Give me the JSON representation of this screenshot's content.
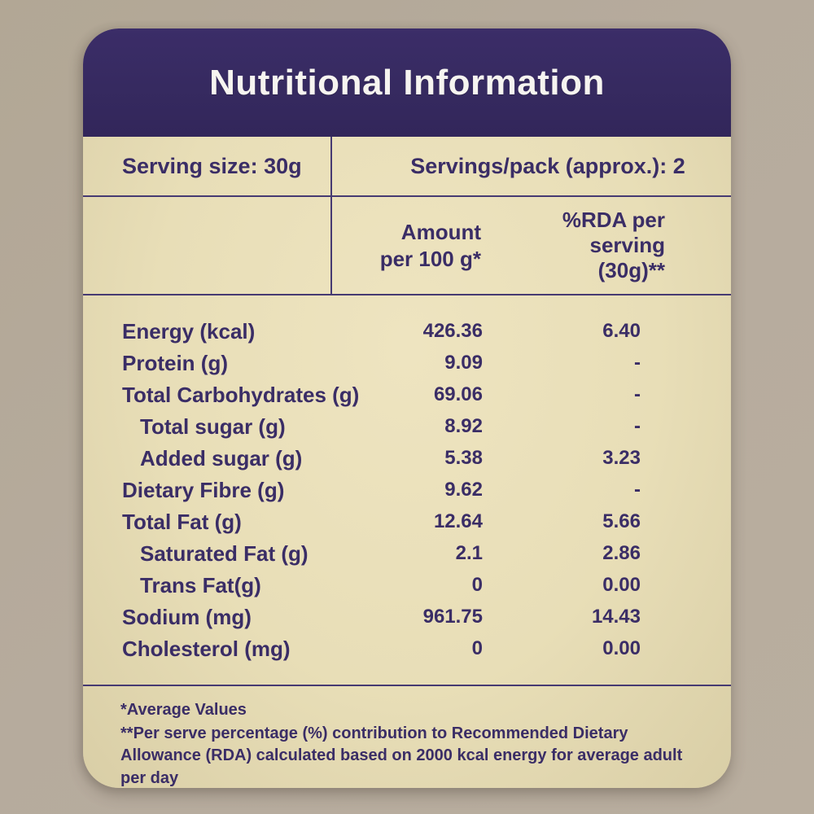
{
  "title": "Nutritional Information",
  "serving": {
    "size": "Serving size: 30g",
    "per_pack": "Servings/pack (approx.): 2"
  },
  "columns": {
    "amount_lines": [
      "Amount",
      "per 100 g*"
    ],
    "rda_lines": [
      "%RDA per",
      "serving",
      "(30g)**"
    ]
  },
  "rows": [
    {
      "label": "Energy (kcal)",
      "indent": false,
      "amount": "426.36",
      "rda": "6.40"
    },
    {
      "label": "Protein (g)",
      "indent": false,
      "amount": "9.09",
      "rda": "-"
    },
    {
      "label": "Total Carbohydrates (g)",
      "indent": false,
      "amount": "69.06",
      "rda": "-"
    },
    {
      "label": "Total sugar (g)",
      "indent": true,
      "amount": "8.92",
      "rda": "-"
    },
    {
      "label": "Added sugar (g)",
      "indent": true,
      "amount": "5.38",
      "rda": "3.23"
    },
    {
      "label": "Dietary Fibre (g)",
      "indent": false,
      "amount": "9.62",
      "rda": "-"
    },
    {
      "label": "Total Fat (g)",
      "indent": false,
      "amount": "12.64",
      "rda": "5.66"
    },
    {
      "label": "Saturated Fat (g)",
      "indent": true,
      "amount": "2.1",
      "rda": "2.86"
    },
    {
      "label": "Trans Fat(g)",
      "indent": true,
      "amount": "0",
      "rda": "0.00"
    },
    {
      "label": "Sodium (mg)",
      "indent": false,
      "amount": "961.75",
      "rda": "14.43"
    },
    {
      "label": "Cholesterol (mg)",
      "indent": false,
      "amount": "0",
      "rda": "0.00"
    }
  ],
  "footnotes": [
    "*Average Values",
    "**Per serve percentage (%) contribution to Recommended Dietary Allowance (RDA) calculated based on 2000 kcal energy for average adult per day"
  ],
  "colors": {
    "header_bg": "#362a60",
    "card_bg": "#e8deb7",
    "page_bg": "#b5aa9c",
    "text": "#3a2d66",
    "rule": "#463a72",
    "title_text": "#f6f4f0"
  }
}
